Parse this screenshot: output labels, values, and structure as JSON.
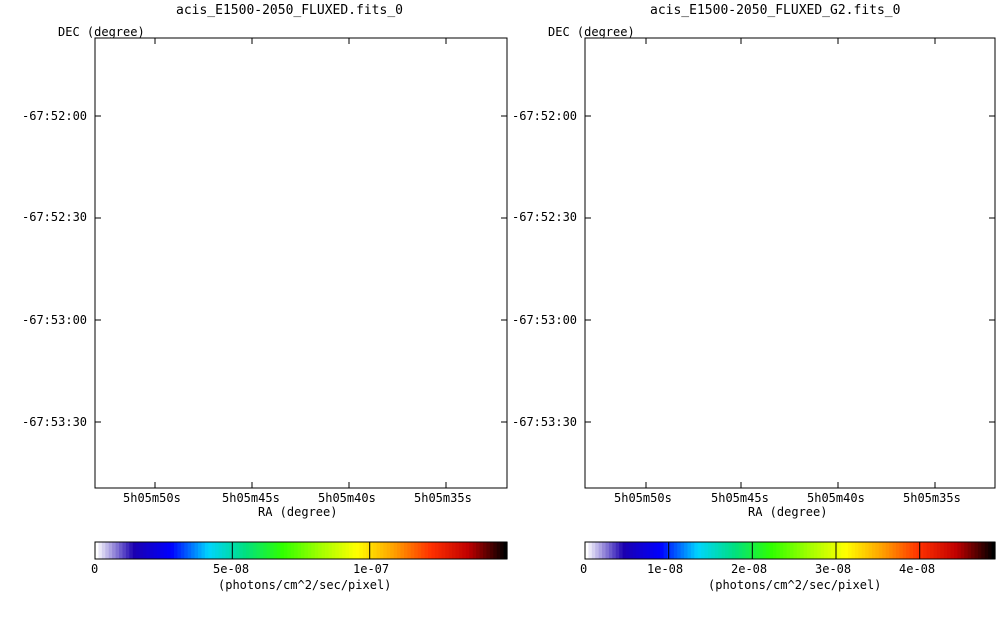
{
  "chart_data": [
    {
      "type": "heatmap",
      "title": "acis_E1500-2050_FLUXED.fits_0",
      "xlabel": "RA (degree)",
      "ylabel": "DEC (degree)",
      "x_ticks": [
        "5h05m50s",
        "5h05m45s",
        "5h05m40s",
        "5h05m35s"
      ],
      "y_ticks": [
        "-67:52:00",
        "-67:52:30",
        "-67:53:00",
        "-67:53:30"
      ],
      "colorbar": {
        "label": "(photons/cm^2/sec/pixel)",
        "ticks": [
          "0",
          "5e-08",
          "1e-07"
        ],
        "tick_values": [
          0,
          5e-08,
          1e-07
        ],
        "range": [
          0,
          1.5e-07
        ]
      },
      "style": "sparse point-like counts, mostly green, denser in a roughly circular remnant in the center"
    },
    {
      "type": "heatmap",
      "title": "acis_E1500-2050_FLUXED_G2.fits_0",
      "xlabel": "RA (degree)",
      "ylabel": "DEC (degree)",
      "x_ticks": [
        "5h05m50s",
        "5h05m45s",
        "5h05m40s",
        "5h05m35s"
      ],
      "y_ticks": [
        "-67:52:00",
        "-67:52:30",
        "-67:53:00",
        "-67:53:30"
      ],
      "colorbar": {
        "label": "(photons/cm^2/sec/pixel)",
        "ticks": [
          "0",
          "1e-08",
          "2e-08",
          "3e-08",
          "4e-08"
        ],
        "tick_values": [
          0,
          1e-08,
          2e-08,
          3e-08,
          4e-08
        ],
        "range": [
          0,
          4.9e-08
        ]
      },
      "style": "Gaussian-smoothed image: blue background blobs, green/yellow filled remnant with red peaks on east and west limbs"
    }
  ],
  "colormap": [
    "#ffffff",
    "#1b00b0",
    "#0000ff",
    "#00d4ff",
    "#00e080",
    "#30ff00",
    "#a0ff00",
    "#ffff00",
    "#ffa000",
    "#ff3000",
    "#c00000",
    "#000000"
  ]
}
